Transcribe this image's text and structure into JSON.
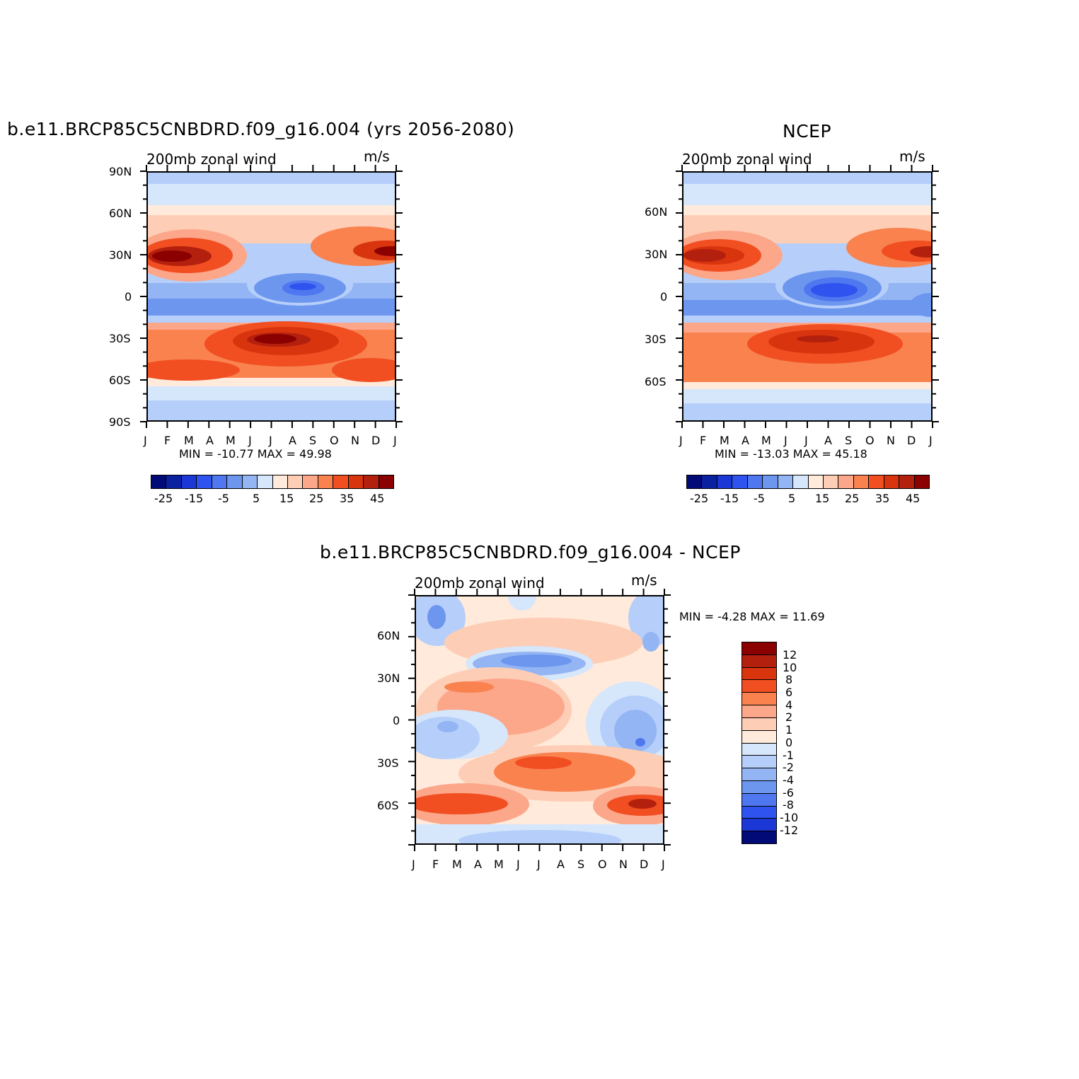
{
  "colors": {
    "pos_scale": [
      "#ffeadb",
      "#fecdb5",
      "#fca68a",
      "#f9824f",
      "#f14f22",
      "#d8340e",
      "#b3200e",
      "#8b0000"
    ],
    "neg_scale": [
      "#d6e6fb",
      "#b6cffa",
      "#94b5f3",
      "#6d96ef",
      "#4f77f0",
      "#2e53ee",
      "#1b37d5",
      "#0a21a0",
      "#020a78"
    ]
  },
  "panels": [
    {
      "title": "b.e11.BRCP85C5CNBDRD.f09_g16.004 (yrs 2056-2080)",
      "left_label": "200mb zonal wind",
      "right_label": "m/s",
      "minmax": "MIN =  -10.77  MAX =    49.98",
      "y_ticks": [
        "90N",
        "60N",
        "30N",
        "0",
        "30S",
        "60S",
        "90S"
      ],
      "x_ticks": [
        "J",
        "F",
        "M",
        "A",
        "M",
        "J",
        "J",
        "A",
        "S",
        "O",
        "N",
        "D",
        "J"
      ],
      "colorbar_labels": [
        "-25",
        "-15",
        "-5",
        "5",
        "15",
        "25",
        "35",
        "45"
      ]
    },
    {
      "title": "NCEP",
      "left_label": "200mb zonal wind",
      "right_label": "m/s",
      "minmax": "MIN =  -13.03  MAX =    45.18",
      "y_ticks": [
        "60N",
        "30N",
        "0",
        "30S",
        "60S"
      ],
      "x_ticks": [
        "J",
        "F",
        "M",
        "A",
        "M",
        "J",
        "J",
        "A",
        "S",
        "O",
        "N",
        "D",
        "J"
      ],
      "colorbar_labels": [
        "-25",
        "-15",
        "-5",
        "5",
        "15",
        "25",
        "35",
        "45"
      ]
    },
    {
      "title": "b.e11.BRCP85C5CNBDRD.f09_g16.004 - NCEP",
      "left_label": "200mb zonal wind",
      "right_label": "m/s",
      "minmax": "MIN =    -4.28  MAX =    11.69",
      "y_ticks": [
        "60N",
        "30N",
        "0",
        "30S",
        "60S"
      ],
      "x_ticks": [
        "J",
        "F",
        "M",
        "A",
        "M",
        "J",
        "J",
        "A",
        "S",
        "O",
        "N",
        "D",
        "J"
      ],
      "colorbar_labels": [
        "12",
        "10",
        "8",
        "6",
        "4",
        "2",
        "1",
        "0",
        "-1",
        "-2",
        "-4",
        "-6",
        "-8",
        "-10",
        "-12"
      ]
    }
  ],
  "chart_data": [
    {
      "type": "heatmap",
      "title": "b.e11.BRCP85C5CNBDRD.f09_g16.004 (yrs 2056-2080)",
      "xlabel": "",
      "ylabel": "",
      "x": [
        "J",
        "F",
        "M",
        "A",
        "M",
        "J",
        "J",
        "A",
        "S",
        "O",
        "N",
        "D",
        "J"
      ],
      "y": [
        "90N",
        "60N",
        "30N",
        "0",
        "30S",
        "60S",
        "90S"
      ],
      "contour_levels": [
        -30,
        -25,
        -20,
        -15,
        -10,
        -5,
        0,
        5,
        10,
        15,
        20,
        25,
        30,
        35,
        40,
        45,
        50
      ],
      "min": -10.77,
      "max": 49.98,
      "units": "m/s"
    },
    {
      "type": "heatmap",
      "title": "NCEP",
      "xlabel": "",
      "ylabel": "",
      "x": [
        "J",
        "F",
        "M",
        "A",
        "M",
        "J",
        "J",
        "A",
        "S",
        "O",
        "N",
        "D",
        "J"
      ],
      "y": [
        "60N",
        "30N",
        "0",
        "30S",
        "60S"
      ],
      "contour_levels": [
        -30,
        -25,
        -20,
        -15,
        -10,
        -5,
        0,
        5,
        10,
        15,
        20,
        25,
        30,
        35,
        40,
        45,
        50
      ],
      "min": -13.03,
      "max": 45.18,
      "units": "m/s"
    },
    {
      "type": "heatmap",
      "title": "b.e11.BRCP85C5CNBDRD.f09_g16.004 - NCEP",
      "xlabel": "",
      "ylabel": "",
      "x": [
        "J",
        "F",
        "M",
        "A",
        "M",
        "J",
        "J",
        "A",
        "S",
        "O",
        "N",
        "D",
        "J"
      ],
      "y": [
        "60N",
        "30N",
        "0",
        "30S",
        "60S"
      ],
      "contour_levels": [
        -12,
        -10,
        -8,
        -6,
        -4,
        -2,
        -1,
        0,
        1,
        2,
        4,
        6,
        8,
        10,
        12
      ],
      "min": -4.28,
      "max": 11.69,
      "units": "m/s"
    }
  ]
}
